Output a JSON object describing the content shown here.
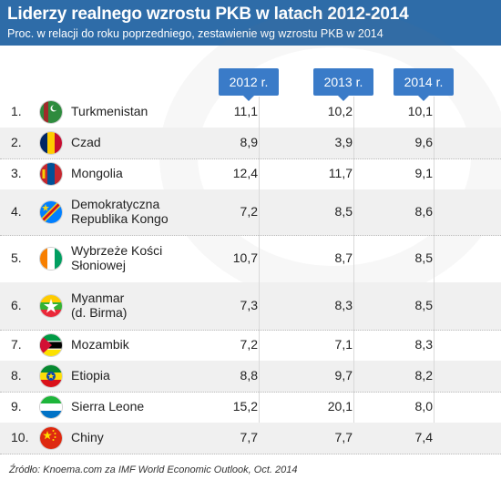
{
  "title": "Liderzy realnego wzrostu PKB w latach 2012-2014",
  "subtitle": "Proc. w relacji do roku poprzedniego, zestawienie wg wzrostu PKB w 2014",
  "source": "Źródło: Knoema.com za IMF World Economic Outlook, Oct. 2014",
  "colors": {
    "header_bg": "#2e6ca8",
    "column_badge": "#3a7bc8",
    "row_alt": "#f0f0f0"
  },
  "chart_data": {
    "type": "table",
    "title": "Liderzy realnego wzrostu PKB w latach 2012-2014",
    "subtitle": "Proc. w relacji do roku poprzedniego, zestawienie wg wzrostu PKB w 2014",
    "columns": [
      "2012 r.",
      "2013 r.",
      "2014 r."
    ],
    "rows": [
      {
        "rank": "1.",
        "country_lines": [
          "Turkmenistan"
        ],
        "flag": "turkmenistan-flag-icon",
        "values": [
          "11,1",
          "10,2",
          "10,1"
        ]
      },
      {
        "rank": "2.",
        "country_lines": [
          "Czad"
        ],
        "flag": "chad-flag-icon",
        "values": [
          "8,9",
          "3,9",
          "9,6"
        ]
      },
      {
        "rank": "3.",
        "country_lines": [
          "Mongolia"
        ],
        "flag": "mongolia-flag-icon",
        "values": [
          "12,4",
          "11,7",
          "9,1"
        ]
      },
      {
        "rank": "4.",
        "country_lines": [
          "Demokratyczna",
          "Republika Kongo"
        ],
        "flag": "dr-congo-flag-icon",
        "values": [
          "7,2",
          "8,5",
          "8,6"
        ]
      },
      {
        "rank": "5.",
        "country_lines": [
          "Wybrzeże Kości",
          "Słoniowej"
        ],
        "flag": "ivory-coast-flag-icon",
        "values": [
          "10,7",
          "8,7",
          "8,5"
        ]
      },
      {
        "rank": "6.",
        "country_lines": [
          "Myanmar",
          "(d. Birma)"
        ],
        "flag": "myanmar-flag-icon",
        "values": [
          "7,3",
          "8,3",
          "8,5"
        ]
      },
      {
        "rank": "7.",
        "country_lines": [
          "Mozambik"
        ],
        "flag": "mozambique-flag-icon",
        "values": [
          "7,2",
          "7,1",
          "8,3"
        ]
      },
      {
        "rank": "8.",
        "country_lines": [
          "Etiopia"
        ],
        "flag": "ethiopia-flag-icon",
        "values": [
          "8,8",
          "9,7",
          "8,2"
        ]
      },
      {
        "rank": "9.",
        "country_lines": [
          "Sierra Leone"
        ],
        "flag": "sierra-leone-flag-icon",
        "values": [
          "15,2",
          "20,1",
          "8,0"
        ]
      },
      {
        "rank": "10.",
        "country_lines": [
          "Chiny"
        ],
        "flag": "china-flag-icon",
        "values": [
          "7,7",
          "7,7",
          "7,4"
        ]
      }
    ]
  }
}
